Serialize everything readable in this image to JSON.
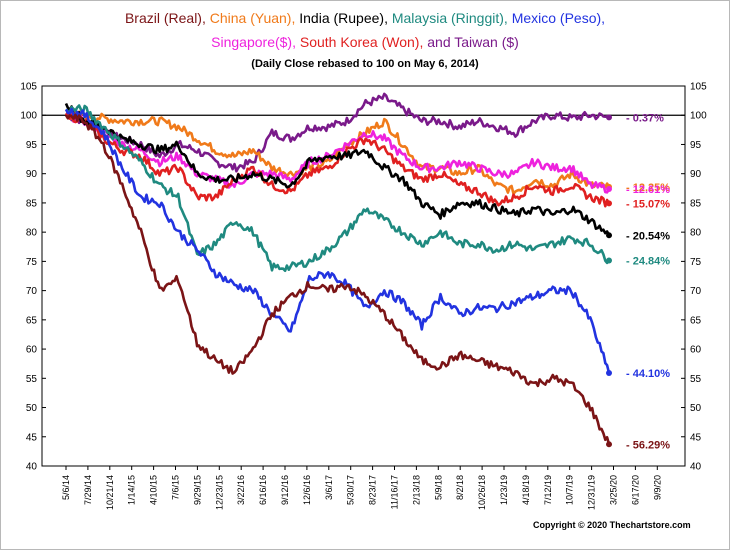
{
  "chart_data": {
    "type": "line",
    "title": {
      "line1": [
        {
          "text": "Brazil (Real), ",
          "color": "#7b1416"
        },
        {
          "text": "China (Yuan), ",
          "color": "#f07a1a"
        },
        {
          "text": "India (Rupee), ",
          "color": "#000000"
        },
        {
          "text": "Malaysia (Ringgit), ",
          "color": "#1f8a80"
        },
        {
          "text": "Mexico (Peso),",
          "color": "#2233e0"
        }
      ],
      "line2": [
        {
          "text": "Singapore($), ",
          "color": "#ee22dd"
        },
        {
          "text": "South Korea (Won), ",
          "color": "#e02020"
        },
        {
          "text": " and Taiwan ($)",
          "color": "#7a1a8a"
        }
      ]
    },
    "subtitle": "(Daily Close rebased to 100 on May 6, 2014)",
    "copyright": "Copyright © 2020  Thechartstore.com",
    "ylim": [
      40,
      105
    ],
    "yticks": [
      40,
      45,
      50,
      55,
      60,
      65,
      70,
      75,
      80,
      85,
      90,
      95,
      100,
      105
    ],
    "reference_line": 100,
    "x_ticks": [
      "5/6/14",
      "7/29/14",
      "10/21/14",
      "1/14/15",
      "4/10/15",
      "7/6/15",
      "9/29/15",
      "12/23/15",
      "3/22/16",
      "6/16/16",
      "9/12/16",
      "12/6/16",
      "3/6/17",
      "5/30/17",
      "8/23/17",
      "11/16/17",
      "2/13/18",
      "5/9/18",
      "8/2/18",
      "10/26/18",
      "1/23/19",
      "4/18/19",
      "7/12/19",
      "10/7/19",
      "12/31/19",
      "3/25/20",
      "6/17/20",
      "9/9/20"
    ],
    "series": [
      {
        "name": "Taiwan",
        "color": "#7a1a8a",
        "end_label": "- 0.37%",
        "label_value": 99.63,
        "values": [
          [
            0,
            100
          ],
          [
            1,
            99
          ],
          [
            2,
            97
          ],
          [
            3,
            96
          ],
          [
            4,
            95
          ],
          [
            5,
            93
          ],
          [
            6,
            95
          ],
          [
            7,
            94
          ],
          [
            8,
            92
          ],
          [
            9,
            91
          ],
          [
            10,
            92
          ],
          [
            11,
            97
          ],
          [
            12,
            96
          ],
          [
            13,
            98
          ],
          [
            14,
            98
          ],
          [
            15,
            99
          ],
          [
            16,
            102
          ],
          [
            17,
            103
          ],
          [
            18,
            101
          ],
          [
            19,
            99
          ],
          [
            20,
            99
          ],
          [
            21,
            98
          ],
          [
            22,
            99
          ],
          [
            23,
            98
          ],
          [
            24,
            97
          ],
          [
            25,
            99
          ],
          [
            26,
            100
          ],
          [
            27,
            99.5
          ],
          [
            28,
            100
          ],
          [
            29,
            99.63
          ]
        ]
      },
      {
        "name": "China",
        "color": "#f07a1a",
        "end_label": "- 12.25%",
        "label_value": 87.75,
        "values": [
          [
            0,
            100
          ],
          [
            1,
            100
          ],
          [
            2,
            99.5
          ],
          [
            3,
            99
          ],
          [
            4,
            99
          ],
          [
            5,
            99
          ],
          [
            6,
            98
          ],
          [
            7,
            96
          ],
          [
            8,
            94
          ],
          [
            9,
            93
          ],
          [
            10,
            94
          ],
          [
            11,
            91
          ],
          [
            12,
            90
          ],
          [
            13,
            91
          ],
          [
            14,
            92
          ],
          [
            15,
            95
          ],
          [
            16,
            97
          ],
          [
            17,
            99
          ],
          [
            18,
            95
          ],
          [
            19,
            91
          ],
          [
            20,
            91
          ],
          [
            21,
            90
          ],
          [
            22,
            91
          ],
          [
            23,
            88
          ],
          [
            24,
            87
          ],
          [
            25,
            89
          ],
          [
            26,
            88
          ],
          [
            27,
            90
          ],
          [
            28,
            88
          ],
          [
            29,
            87.75
          ]
        ]
      },
      {
        "name": "Singapore",
        "color": "#ee22dd",
        "end_label": "- 12.61%",
        "label_value": 87.39,
        "values": [
          [
            0,
            100
          ],
          [
            1,
            99
          ],
          [
            2,
            97
          ],
          [
            3,
            95
          ],
          [
            4,
            94
          ],
          [
            5,
            92
          ],
          [
            6,
            93
          ],
          [
            7,
            90
          ],
          [
            8,
            89
          ],
          [
            9,
            88
          ],
          [
            10,
            90
          ],
          [
            11,
            90
          ],
          [
            12,
            89
          ],
          [
            13,
            92
          ],
          [
            14,
            93
          ],
          [
            15,
            95
          ],
          [
            16,
            97
          ],
          [
            17,
            96
          ],
          [
            18,
            93
          ],
          [
            19,
            91
          ],
          [
            20,
            91
          ],
          [
            21,
            92
          ],
          [
            22,
            91
          ],
          [
            23,
            90
          ],
          [
            24,
            90
          ],
          [
            25,
            92
          ],
          [
            26,
            91
          ],
          [
            27,
            91
          ],
          [
            28,
            88
          ],
          [
            29,
            87.39
          ]
        ]
      },
      {
        "name": "South Korea",
        "color": "#e02020",
        "end_label": "- 15.07%",
        "label_value": 84.93,
        "values": [
          [
            0,
            100
          ],
          [
            1,
            99
          ],
          [
            2,
            96
          ],
          [
            3,
            94
          ],
          [
            4,
            93
          ],
          [
            5,
            90
          ],
          [
            6,
            91
          ],
          [
            7,
            86
          ],
          [
            8,
            86
          ],
          [
            9,
            89
          ],
          [
            10,
            91
          ],
          [
            11,
            88
          ],
          [
            12,
            87
          ],
          [
            13,
            90
          ],
          [
            14,
            91
          ],
          [
            15,
            94
          ],
          [
            16,
            96
          ],
          [
            17,
            94
          ],
          [
            18,
            91
          ],
          [
            19,
            89
          ],
          [
            20,
            90
          ],
          [
            21,
            88
          ],
          [
            22,
            87
          ],
          [
            23,
            85
          ],
          [
            24,
            86
          ],
          [
            25,
            88
          ],
          [
            26,
            87
          ],
          [
            27,
            88
          ],
          [
            28,
            86
          ],
          [
            29,
            84.93
          ]
        ]
      },
      {
        "name": "India",
        "color": "#000000",
        "end_label": "- 20.54%",
        "label_value": 79.46,
        "values": [
          [
            0,
            102
          ],
          [
            1,
            99
          ],
          [
            2,
            98
          ],
          [
            3,
            96
          ],
          [
            4,
            95
          ],
          [
            5,
            94
          ],
          [
            6,
            95
          ],
          [
            7,
            90
          ],
          [
            8,
            89
          ],
          [
            9,
            89
          ],
          [
            10,
            90
          ],
          [
            11,
            89
          ],
          [
            12,
            88
          ],
          [
            13,
            92
          ],
          [
            14,
            93
          ],
          [
            15,
            93
          ],
          [
            16,
            94
          ],
          [
            17,
            91
          ],
          [
            18,
            89
          ],
          [
            19,
            85
          ],
          [
            20,
            83
          ],
          [
            21,
            85
          ],
          [
            22,
            85
          ],
          [
            23,
            84
          ],
          [
            24,
            83
          ],
          [
            25,
            84
          ],
          [
            26,
            83
          ],
          [
            27,
            84
          ],
          [
            28,
            82
          ],
          [
            29,
            79.46
          ]
        ]
      },
      {
        "name": "Malaysia",
        "color": "#1f8a80",
        "end_label": "- 24.84%",
        "label_value": 75.16,
        "values": [
          [
            0,
            101
          ],
          [
            1,
            101
          ],
          [
            2,
            98
          ],
          [
            3,
            95
          ],
          [
            4,
            92
          ],
          [
            5,
            88
          ],
          [
            6,
            86
          ],
          [
            7,
            76
          ],
          [
            8,
            78
          ],
          [
            9,
            82
          ],
          [
            10,
            80
          ],
          [
            11,
            74
          ],
          [
            12,
            74
          ],
          [
            13,
            75
          ],
          [
            14,
            77
          ],
          [
            15,
            80
          ],
          [
            16,
            84
          ],
          [
            17,
            82
          ],
          [
            18,
            80
          ],
          [
            19,
            78
          ],
          [
            20,
            80
          ],
          [
            21,
            78
          ],
          [
            22,
            78
          ],
          [
            23,
            77
          ],
          [
            24,
            78
          ],
          [
            25,
            77
          ],
          [
            26,
            78
          ],
          [
            27,
            79
          ],
          [
            28,
            78
          ],
          [
            29,
            75.16
          ]
        ]
      },
      {
        "name": "Mexico",
        "color": "#2233e0",
        "end_label": "- 44.10%",
        "label_value": 55.9,
        "values": [
          [
            0,
            101
          ],
          [
            1,
            100
          ],
          [
            2,
            97
          ],
          [
            3,
            91
          ],
          [
            4,
            86
          ],
          [
            5,
            85
          ],
          [
            6,
            80
          ],
          [
            7,
            77
          ],
          [
            8,
            73
          ],
          [
            9,
            71
          ],
          [
            10,
            70
          ],
          [
            11,
            66
          ],
          [
            12,
            63
          ],
          [
            13,
            72
          ],
          [
            14,
            73
          ],
          [
            15,
            71
          ],
          [
            16,
            67
          ],
          [
            17,
            70
          ],
          [
            18,
            68
          ],
          [
            19,
            64
          ],
          [
            20,
            69
          ],
          [
            21,
            66
          ],
          [
            22,
            67
          ],
          [
            23,
            67
          ],
          [
            24,
            68
          ],
          [
            25,
            69
          ],
          [
            26,
            70
          ],
          [
            27,
            70
          ],
          [
            28,
            65
          ],
          [
            29,
            55.9
          ]
        ]
      },
      {
        "name": "Brazil",
        "color": "#7b1416",
        "end_label": "- 56.29%",
        "label_value": 43.71,
        "values": [
          [
            0,
            100
          ],
          [
            1,
            99
          ],
          [
            2,
            95
          ],
          [
            3,
            88
          ],
          [
            4,
            80
          ],
          [
            5,
            70
          ],
          [
            6,
            72
          ],
          [
            7,
            61
          ],
          [
            8,
            58
          ],
          [
            9,
            56
          ],
          [
            10,
            60
          ],
          [
            11,
            66
          ],
          [
            12,
            69
          ],
          [
            13,
            71
          ],
          [
            14,
            70
          ],
          [
            15,
            71
          ],
          [
            16,
            69
          ],
          [
            17,
            66
          ],
          [
            18,
            62
          ],
          [
            19,
            58
          ],
          [
            20,
            57
          ],
          [
            21,
            59
          ],
          [
            22,
            58
          ],
          [
            23,
            57
          ],
          [
            24,
            56
          ],
          [
            25,
            54
          ],
          [
            26,
            55
          ],
          [
            27,
            54
          ],
          [
            28,
            50
          ],
          [
            29,
            43.71
          ]
        ]
      }
    ]
  }
}
